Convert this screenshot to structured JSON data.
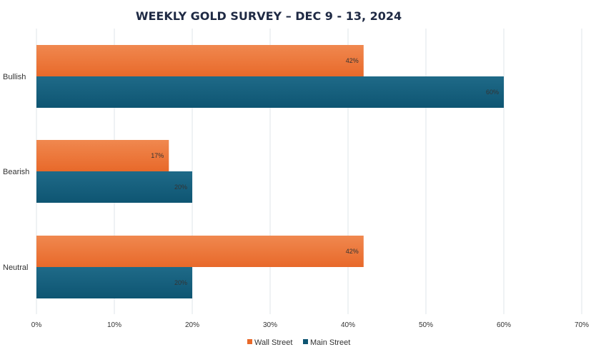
{
  "chart_data": {
    "type": "bar",
    "orientation": "horizontal",
    "title": "WEEKLY GOLD SURVEY – DEC 9 - 13, 2024",
    "categories": [
      "Bullish",
      "Bearish",
      "Neutral"
    ],
    "series": [
      {
        "name": "Wall Street",
        "values": [
          42,
          17,
          42
        ],
        "labels": [
          "42%",
          "17%",
          "42%"
        ],
        "color": "#e8692a",
        "color_light": "#f0884f"
      },
      {
        "name": "Main Street",
        "values": [
          60,
          20,
          20
        ],
        "labels": [
          "60%",
          "20%",
          "20%"
        ],
        "color": "#0e5572",
        "color_light": "#1f6a88"
      }
    ],
    "xlim": [
      0,
      70
    ],
    "xticks": [
      "0%",
      "10%",
      "20%",
      "30%",
      "40%",
      "50%",
      "60%",
      "70%"
    ],
    "grid": true,
    "legend": "bottom"
  }
}
